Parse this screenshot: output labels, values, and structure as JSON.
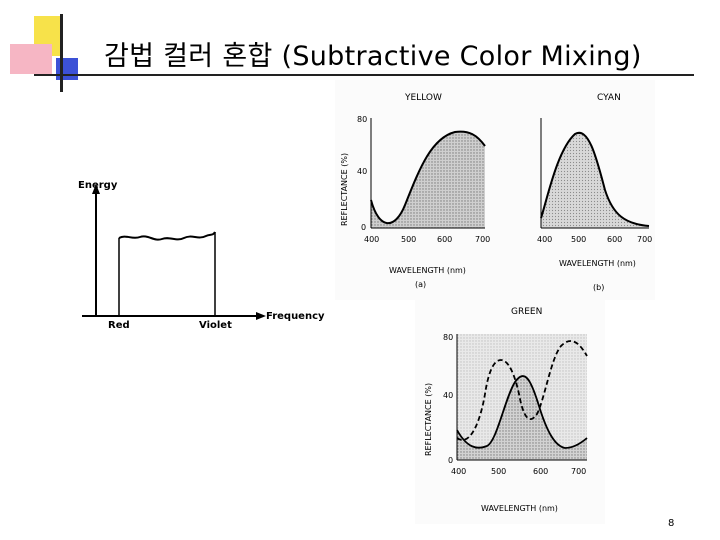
{
  "slide": {
    "title": "감법 컬러 혼합 (Subtractive Color Mixing)",
    "page_number": "8"
  },
  "energy_chart": {
    "ylabel": "Energy",
    "xlabel": "Frequency",
    "left_label": "Red",
    "right_label": "Violet"
  },
  "yellow_chart": {
    "title": "YELLOW",
    "ylabel": "REFLECTANCE (%)",
    "xlabel": "WAVELENGTH (nm)",
    "y_ticks": [
      "80",
      "40",
      "0"
    ],
    "x_ticks": [
      "400",
      "500",
      "600",
      "700"
    ],
    "caption": "(a)"
  },
  "cyan_chart": {
    "title": "CYAN",
    "xlabel": "WAVELENGTH (nm)",
    "x_ticks": [
      "400",
      "500",
      "600",
      "700"
    ],
    "caption": "(b)"
  },
  "green_chart": {
    "title": "GREEN",
    "ylabel": "REFLECTANCE (%)",
    "xlabel": "WAVELENGTH (nm)",
    "y_ticks": [
      "80",
      "40",
      "0"
    ],
    "x_ticks": [
      "400",
      "500",
      "600",
      "700"
    ]
  },
  "colors": {
    "accent_yellow": "#f7e24a",
    "accent_pink": "#f6b6c4",
    "accent_blue": "#3c51d6"
  }
}
